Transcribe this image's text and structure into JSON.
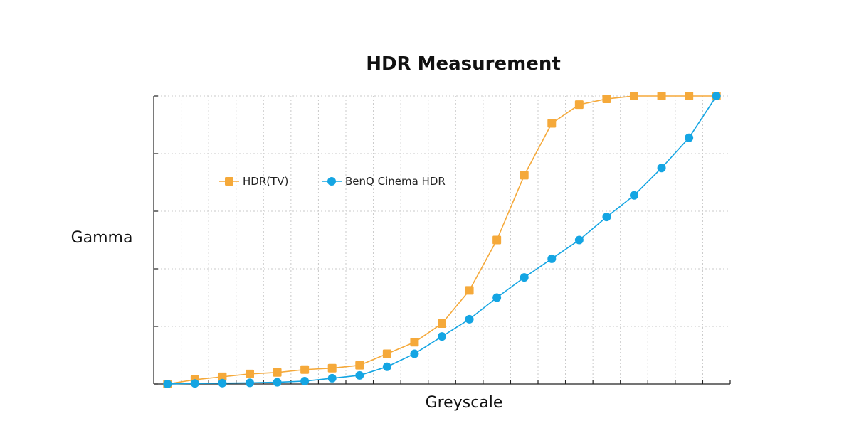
{
  "chart_data": {
    "type": "line",
    "title": "HDR Measurement",
    "xlabel": "Greyscale",
    "ylabel": "Gamma",
    "x": [
      0,
      1,
      2,
      3,
      4,
      5,
      6,
      7,
      8,
      9,
      10,
      11,
      12,
      13,
      14,
      15,
      16,
      17,
      18,
      19,
      20
    ],
    "xlim": [
      -0.5,
      20.5
    ],
    "ylim": [
      0,
      100
    ],
    "x_tick_labels_shown": false,
    "y_tick_labels_shown": false,
    "grid": true,
    "legend_position": "upper-left inside",
    "series": [
      {
        "name": "HDR(TV)",
        "color": "#f5a93a",
        "marker": "square",
        "values": [
          0,
          1.5,
          2.5,
          3.5,
          4,
          5,
          5.5,
          6.5,
          10.5,
          14.5,
          21,
          32.5,
          50,
          72.5,
          90.5,
          97,
          99,
          100,
          100,
          100,
          100
        ]
      },
      {
        "name": "BenQ Cinema HDR",
        "color": "#14a5e3",
        "marker": "circle",
        "values": [
          0,
          0.2,
          0.3,
          0.4,
          0.6,
          1,
          2,
          3,
          6,
          10.5,
          16.5,
          22.5,
          30,
          37,
          43.5,
          50,
          58,
          65.5,
          75,
          85.5,
          100
        ]
      }
    ]
  }
}
